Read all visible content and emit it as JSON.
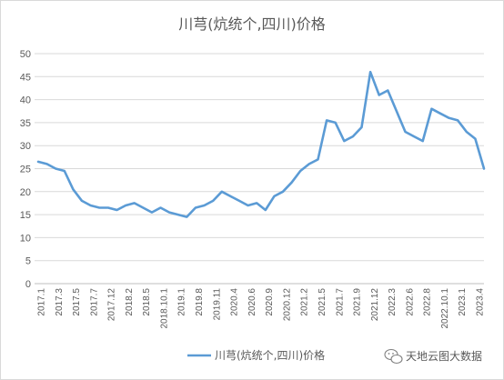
{
  "chart_data": {
    "type": "line",
    "title": "川芎(炕统个,四川)价格",
    "xlabel": "",
    "ylabel": "",
    "ylim": [
      0,
      50
    ],
    "y_ticks": [
      0,
      5,
      10,
      15,
      20,
      25,
      30,
      35,
      40,
      45,
      50
    ],
    "grid": "horizontal",
    "legend_position": "bottom",
    "x_tick_labels": [
      "2017.1",
      "2017.3",
      "2017.5",
      "2017.7",
      "2017.12",
      "2018.2",
      "2018.5",
      "2018.10.1",
      "2019.1",
      "2019.8",
      "2019.11",
      "2020.4",
      "2020.6",
      "2020.9",
      "2020.12",
      "2021.2",
      "2021.5",
      "2021.7",
      "2021.9",
      "2021.12",
      "2022.3",
      "2022.6",
      "2022.8",
      "2022.10.1",
      "2023.1",
      "2023.4"
    ],
    "series": [
      {
        "name": "川芎(炕统个,四川)价格",
        "color": "#5b9bd5",
        "values": [
          26.5,
          26.0,
          25.0,
          24.5,
          20.5,
          18.0,
          17.0,
          16.5,
          16.5,
          16.0,
          17.0,
          17.5,
          16.5,
          15.5,
          16.5,
          15.5,
          15.0,
          14.5,
          16.5,
          17.0,
          18.0,
          20.0,
          19.0,
          18.0,
          17.0,
          17.5,
          16.0,
          19.0,
          20.0,
          22.0,
          24.5,
          26.0,
          27.0,
          35.5,
          35.0,
          31.0,
          32.0,
          34.0,
          46.0,
          41.0,
          42.0,
          37.5,
          33.0,
          32.0,
          31.0,
          38.0,
          37.0,
          36.0,
          35.5,
          33.0,
          31.5,
          25.0
        ]
      }
    ]
  },
  "watermark": {
    "text": "天地云图大数据",
    "icon": "wechat-icon"
  }
}
